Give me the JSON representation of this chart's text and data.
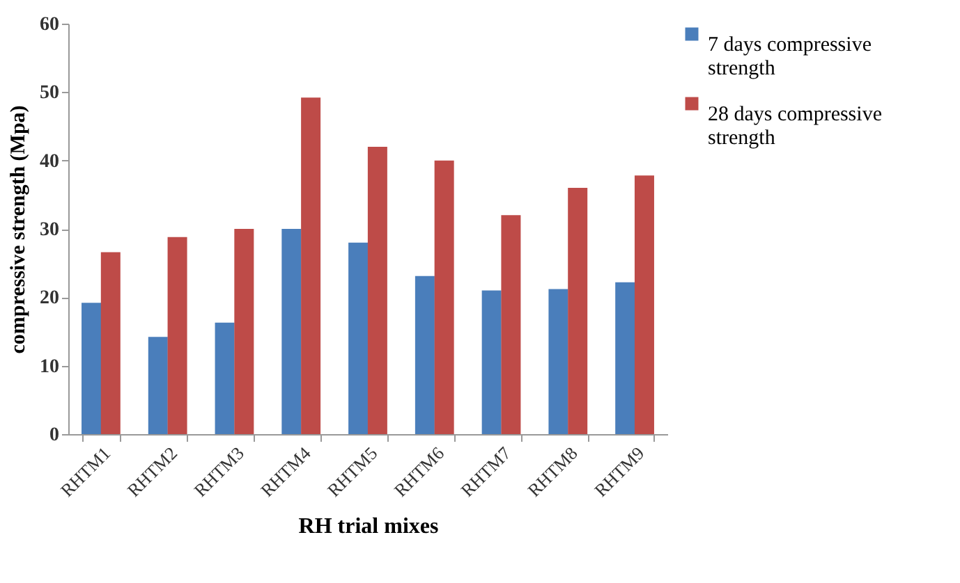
{
  "chart_data": {
    "type": "bar",
    "xlabel": "RH trial mixes",
    "ylabel": "compressive strength (Mpa)",
    "categories": [
      "RHTM1",
      "RHTM2",
      "RHTM3",
      "RHTM4",
      "RHTM5",
      "RHTM6",
      "RHTM7",
      "RHTM8",
      "RHTM9"
    ],
    "series": [
      {
        "name": "7 days compressive strength",
        "color": "#4a7ebb",
        "values": [
          19.2,
          14.2,
          16.3,
          30,
          28,
          23.1,
          21,
          21.2,
          22.2
        ]
      },
      {
        "name": "28 days compressive strength",
        "color": "#be4b48",
        "values": [
          26.6,
          28.8,
          30,
          49.2,
          42,
          40,
          32,
          36,
          37.8
        ]
      }
    ],
    "ylim": [
      0,
      60
    ],
    "yticks": [
      0,
      10,
      20,
      30,
      40,
      50,
      60
    ],
    "grid": false,
    "legend": "right"
  }
}
